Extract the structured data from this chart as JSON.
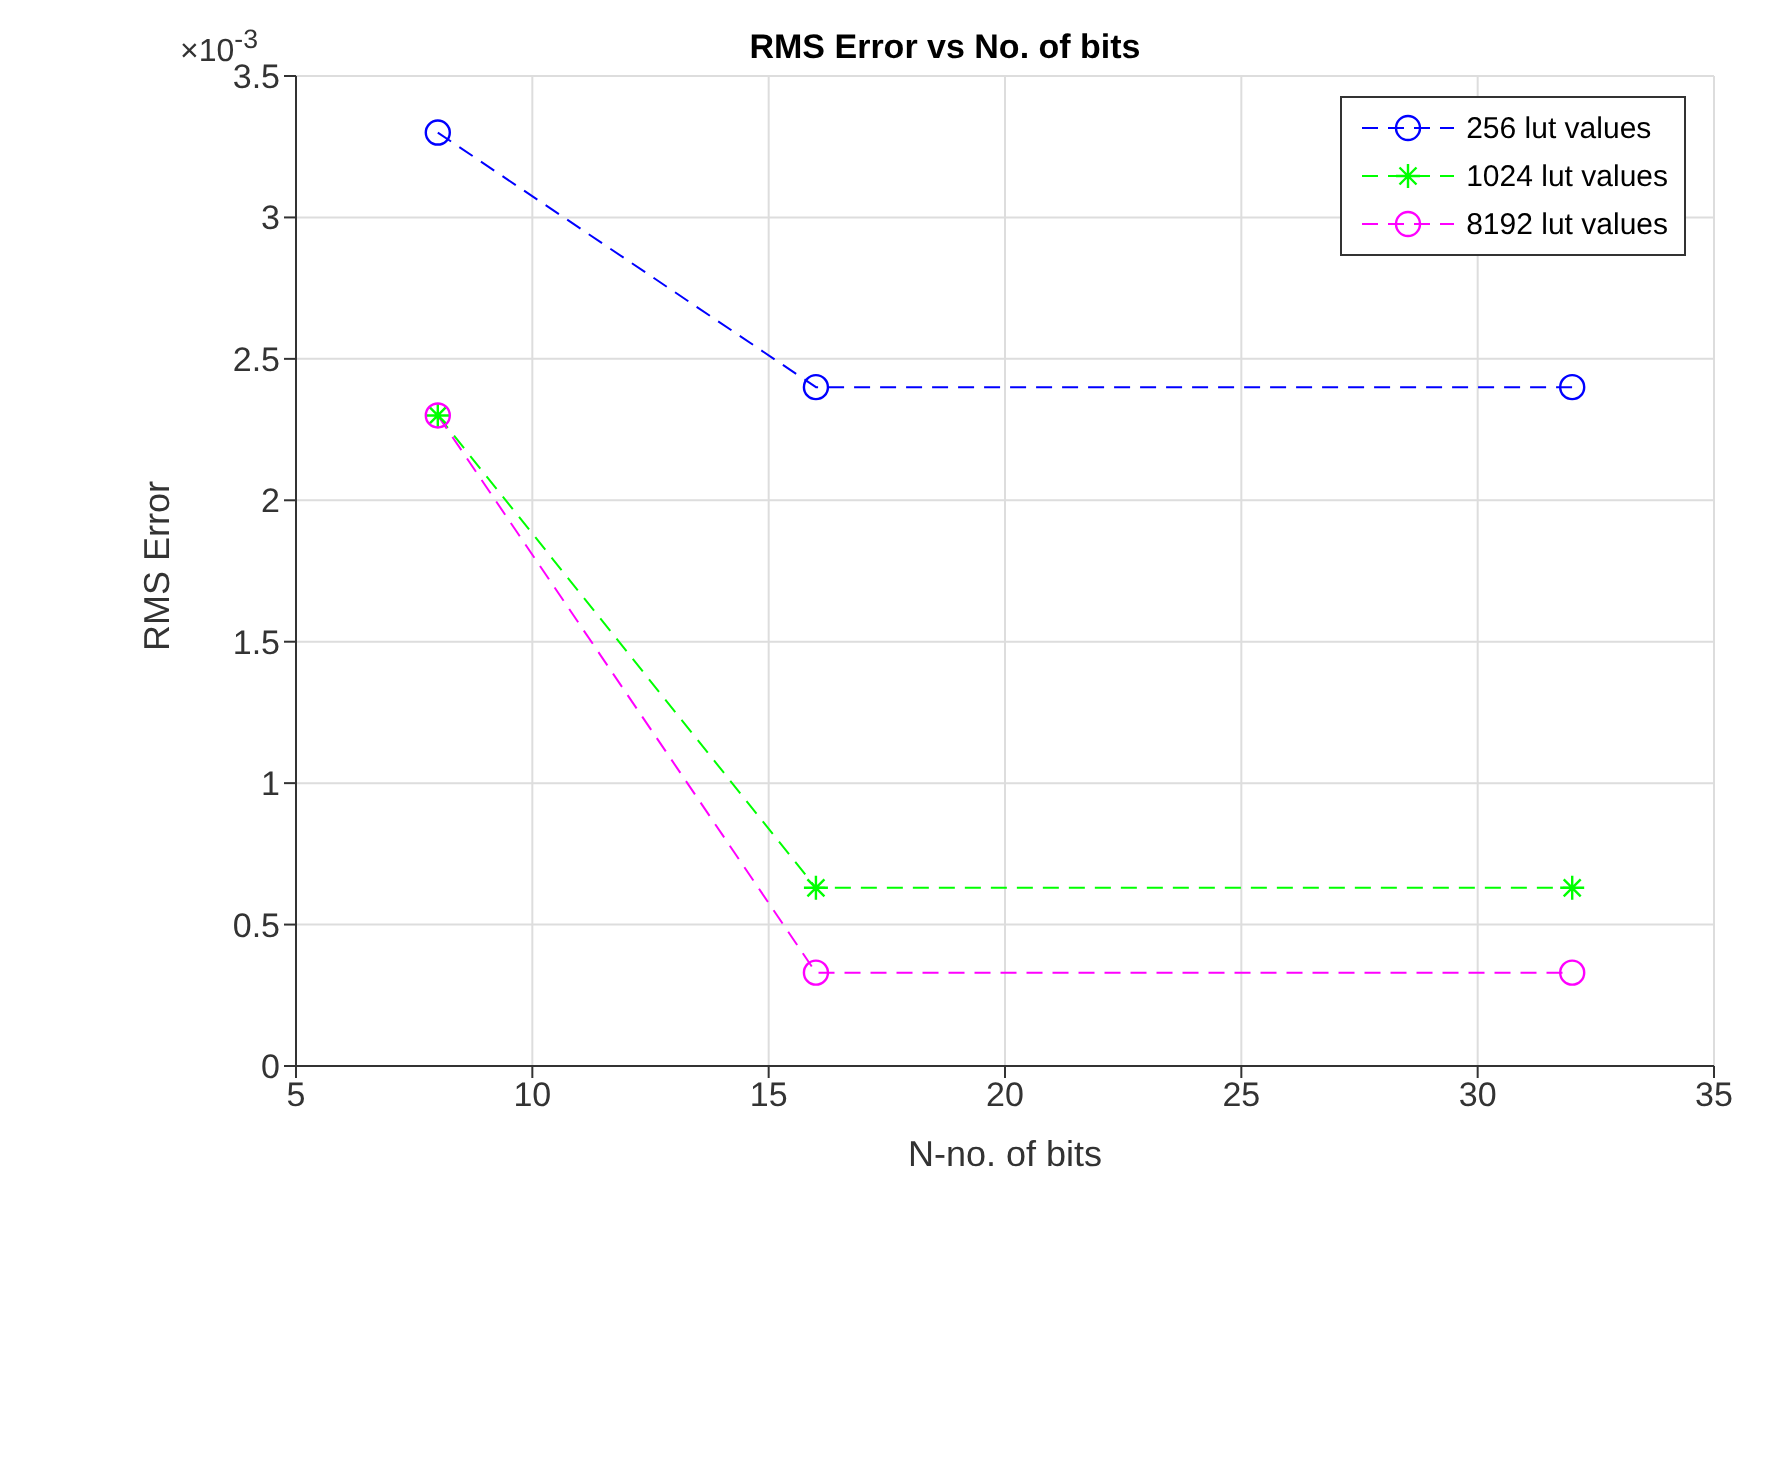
{
  "chart_data": {
    "type": "line",
    "title": "RMS Error vs No. of bits",
    "xlabel": "N-no. of bits",
    "ylabel": "RMS Error",
    "annotations": [
      "×10$^{-3}$"
    ],
    "x": [
      8,
      16,
      32
    ],
    "series": [
      {
        "name": "256 lut values",
        "color": "#0000ff",
        "values": [
          3.3,
          2.4,
          2.4
        ],
        "marker": "circle"
      },
      {
        "name": "1024 lut values",
        "color": "#00ff00",
        "values": [
          2.3,
          0.63,
          0.63
        ],
        "marker": "cross"
      },
      {
        "name": "8192 lut values",
        "color": "#ff00ff",
        "values": [
          2.3,
          0.33,
          0.33
        ],
        "marker": "circle"
      }
    ],
    "xlim": [
      5,
      35
    ],
    "xticks": [
      5,
      10,
      15,
      20,
      25,
      30,
      35
    ],
    "ylim": [
      0,
      3.5
    ],
    "yticks": [
      0,
      0.5,
      1,
      1.5,
      2,
      2.5,
      3,
      3.5
    ],
    "grid": true,
    "legend": "top right",
    "line_style": "dashed"
  }
}
